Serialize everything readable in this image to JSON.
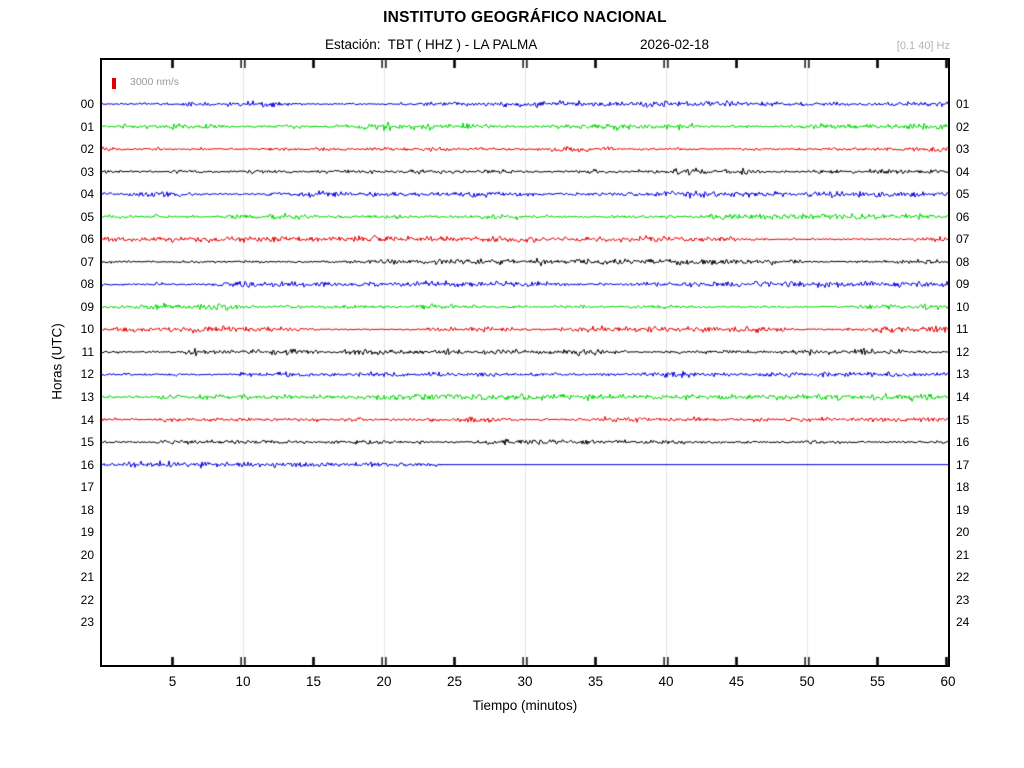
{
  "chart_data": {
    "type": "line",
    "subtype": "helicorder-seismogram",
    "title": "INSTITUTO GEOGRÁFICO NACIONAL",
    "subtitle_station": "Estación:  TBT ( HHZ ) - LA PALMA",
    "subtitle_date": "2026-02-18",
    "filter_band": "[0.1 40] Hz",
    "scale_label": "3000 nm/s",
    "scale_value_nm_s": 3000,
    "xlabel": "Tiempo (minutos)",
    "ylabel": "Horas (UTC)",
    "x_range": [
      0,
      60
    ],
    "x_ticks": [
      5,
      10,
      15,
      20,
      25,
      30,
      35,
      40,
      45,
      50,
      55,
      60
    ],
    "grid_minutes": [
      10,
      20,
      30,
      40,
      50
    ],
    "grid_on": true,
    "left_hour_labels": [
      "00",
      "01",
      "02",
      "03",
      "04",
      "05",
      "06",
      "07",
      "08",
      "09",
      "10",
      "11",
      "12",
      "13",
      "14",
      "15",
      "16",
      "17",
      "18",
      "19",
      "20",
      "21",
      "22",
      "23"
    ],
    "right_hour_labels": [
      "01",
      "02",
      "03",
      "04",
      "05",
      "06",
      "07",
      "08",
      "09",
      "10",
      "11",
      "12",
      "13",
      "14",
      "15",
      "16",
      "17",
      "18",
      "19",
      "20",
      "21",
      "22",
      "23",
      "24"
    ],
    "palette": {
      "blue": "#0000dd",
      "green": "#00d600",
      "red": "#e60000",
      "black": "#000000",
      "grid": "#e4e4e4"
    },
    "traces": [
      {
        "hour": "00",
        "color": "blue",
        "signal": "noise",
        "start_min": 0,
        "end_min": 60
      },
      {
        "hour": "01",
        "color": "green",
        "signal": "noise",
        "start_min": 0,
        "end_min": 60
      },
      {
        "hour": "02",
        "color": "red",
        "signal": "noise",
        "start_min": 0,
        "end_min": 60
      },
      {
        "hour": "03",
        "color": "black",
        "signal": "noise",
        "start_min": 0,
        "end_min": 60
      },
      {
        "hour": "04",
        "color": "blue",
        "signal": "noise",
        "start_min": 0,
        "end_min": 60
      },
      {
        "hour": "05",
        "color": "green",
        "signal": "noise",
        "start_min": 0,
        "end_min": 60
      },
      {
        "hour": "06",
        "color": "red",
        "signal": "noise",
        "start_min": 0,
        "end_min": 60
      },
      {
        "hour": "07",
        "color": "black",
        "signal": "noise",
        "start_min": 0,
        "end_min": 60
      },
      {
        "hour": "08",
        "color": "blue",
        "signal": "noise",
        "start_min": 0,
        "end_min": 60
      },
      {
        "hour": "09",
        "color": "green",
        "signal": "noise",
        "start_min": 0,
        "end_min": 60
      },
      {
        "hour": "10",
        "color": "red",
        "signal": "noise",
        "start_min": 0,
        "end_min": 60
      },
      {
        "hour": "11",
        "color": "black",
        "signal": "noise",
        "start_min": 0,
        "end_min": 60
      },
      {
        "hour": "12",
        "color": "blue",
        "signal": "noise",
        "start_min": 0,
        "end_min": 60
      },
      {
        "hour": "13",
        "color": "green",
        "signal": "noise",
        "start_min": 0,
        "end_min": 60
      },
      {
        "hour": "14",
        "color": "red",
        "signal": "noise",
        "start_min": 0,
        "end_min": 60
      },
      {
        "hour": "15",
        "color": "black",
        "signal": "noise",
        "start_min": 0,
        "end_min": 60
      },
      {
        "hour": "16",
        "color": "blue",
        "signal": "noise",
        "start_min": 0,
        "end_min": 24,
        "flat_after_end": true
      },
      {
        "hour": "17",
        "color": null,
        "signal": "none"
      },
      {
        "hour": "18",
        "color": null,
        "signal": "none"
      },
      {
        "hour": "19",
        "color": null,
        "signal": "none"
      },
      {
        "hour": "20",
        "color": null,
        "signal": "none"
      },
      {
        "hour": "21",
        "color": null,
        "signal": "none"
      },
      {
        "hour": "22",
        "color": null,
        "signal": "none"
      },
      {
        "hour": "23",
        "color": null,
        "signal": "none"
      }
    ]
  }
}
